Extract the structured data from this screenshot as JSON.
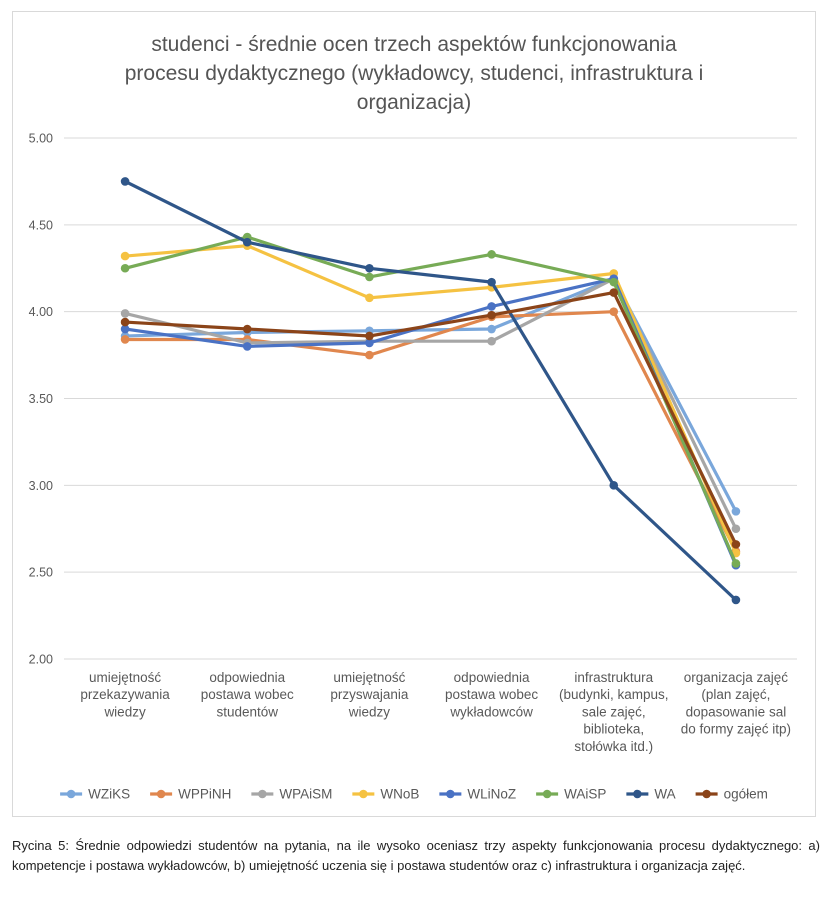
{
  "chart_data": {
    "type": "line",
    "title_lines": [
      "studenci - średnie ocen trzech aspektów funkcjonowania",
      "procesu dydaktycznego (wykładowcy, studenci, infrastruktura i",
      "organizacja)"
    ],
    "categories": [
      [
        "umiejętność",
        "przekazywania",
        "wiedzy"
      ],
      [
        "odpowiednia",
        "postawa wobec",
        "studentów"
      ],
      [
        "umiejętność",
        "przyswajania",
        "wiedzy"
      ],
      [
        "odpowiednia",
        "postawa wobec",
        "wykładowców"
      ],
      [
        "infrastruktura",
        "(budynki, kampus,",
        "sale zajęć,",
        "biblioteka,",
        "stołówka itd.)"
      ],
      [
        "organizacja zajęć",
        "(plan zajęć,",
        "dopasowanie sal",
        "do formy zajęć itp)"
      ]
    ],
    "y_ticks": [
      "2.00",
      "2.50",
      "3.00",
      "3.50",
      "4.00",
      "4.50",
      "5.00"
    ],
    "ylim": [
      2.0,
      5.0
    ],
    "grid": true,
    "legend_position": "bottom",
    "series": [
      {
        "name": "WZiKS",
        "color": "#7aa7db",
        "values": [
          3.86,
          3.88,
          3.89,
          3.9,
          4.19,
          2.85
        ]
      },
      {
        "name": "WPPiNH",
        "color": "#e0874e",
        "values": [
          3.84,
          3.84,
          3.75,
          3.97,
          4.0,
          2.62
        ]
      },
      {
        "name": "WPAiSM",
        "color": "#a6a6a6",
        "values": [
          3.99,
          3.82,
          3.83,
          3.83,
          4.19,
          2.75
        ]
      },
      {
        "name": "WNoB",
        "color": "#f5c242",
        "values": [
          4.32,
          4.38,
          4.08,
          4.14,
          4.22,
          2.61
        ]
      },
      {
        "name": "WLiNoZ",
        "color": "#4a72c4",
        "values": [
          3.9,
          3.8,
          3.82,
          4.03,
          4.19,
          2.54
        ]
      },
      {
        "name": "WAiSP",
        "color": "#77ab56",
        "values": [
          4.25,
          4.43,
          4.2,
          4.33,
          4.17,
          2.55
        ]
      },
      {
        "name": "WA",
        "color": "#2f5689",
        "values": [
          4.75,
          4.4,
          4.25,
          4.17,
          3.0,
          2.34
        ]
      },
      {
        "name": "ogółem",
        "color": "#8b4419",
        "values": [
          3.94,
          3.9,
          3.86,
          3.98,
          4.11,
          2.66
        ]
      }
    ]
  },
  "caption": "Rycina 5: Średnie odpowiedzi studentów na pytania, na ile wysoko oceniasz trzy aspekty funkcjonowania procesu dydaktycznego: a) kompetencje i postawa wykładowców, b) umiejętność uczenia się i postawa studentów oraz c) infrastruktura i organizacja zajęć."
}
